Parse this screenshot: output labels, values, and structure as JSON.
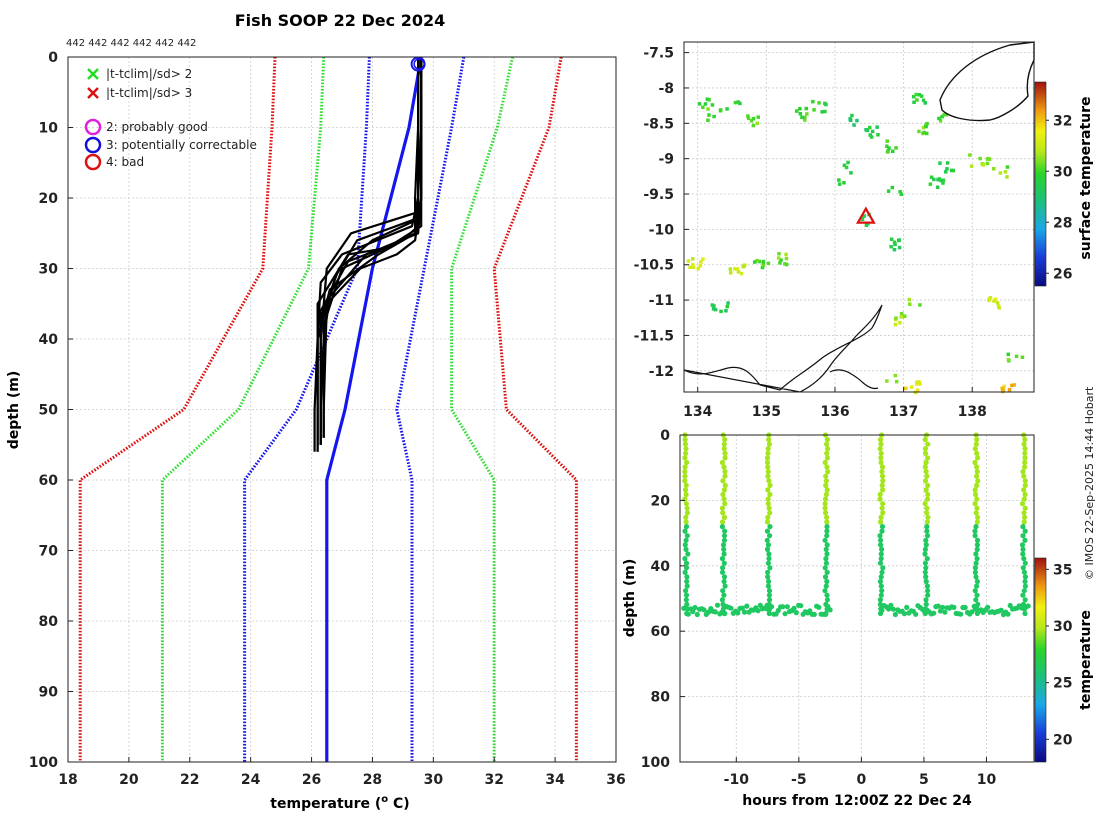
{
  "chart_data": [
    {
      "type": "line",
      "title": "Fish SOOP 22 Dec 2024",
      "top_annotation": "442 442 442 442 442 442",
      "xlabel": "temperature (",
      "xlabel_sup": "o",
      "xlabel_end": " C)",
      "ylabel": "depth (m)",
      "xlim": [
        18,
        36
      ],
      "ylim": [
        0,
        100
      ],
      "xticks": [
        "18",
        "20",
        "22",
        "24",
        "26",
        "28",
        "30",
        "32",
        "34",
        "36"
      ],
      "yticks": [
        "0",
        "10",
        "20",
        "30",
        "40",
        "50",
        "60",
        "70",
        "80",
        "90",
        "100"
      ],
      "legend": [
        {
          "label": "|t-tclim|/sd> 2",
          "marker": "x",
          "color": "#22dd22"
        },
        {
          "label": "|t-tclim|/sd> 3",
          "marker": "x",
          "color": "#dd1111"
        },
        {
          "label": "2: probably good",
          "marker": "o",
          "color": "#dd22dd"
        },
        {
          "label": "3: potentially correctable",
          "marker": "o",
          "color": "#1111dd"
        },
        {
          "label": "4: bad",
          "marker": "o",
          "color": "#dd1111"
        }
      ],
      "colors": {
        "red": "#dd1111",
        "green": "#33dd33",
        "blue": "#1515ee",
        "black": "#000000"
      },
      "climatology": {
        "depth": [
          0,
          10,
          30,
          50,
          60,
          100
        ],
        "mean": [
          29.6,
          29.2,
          28.0,
          27.1,
          26.5,
          26.5
        ],
        "lines": [
          {
            "name": "mean-3sd",
            "color": "#dd1111",
            "temps": [
              24.8,
              24.7,
              24.4,
              21.8,
              18.4,
              18.4
            ]
          },
          {
            "name": "mean-2sd",
            "color": "#33dd33",
            "temps": [
              26.4,
              26.3,
              25.9,
              23.6,
              21.1,
              21.1
            ]
          },
          {
            "name": "mean-1sd",
            "color": "#1515ee",
            "temps": [
              27.9,
              27.8,
              27.5,
              25.5,
              23.8,
              23.8
            ]
          },
          {
            "name": "mean+1sd",
            "color": "#1515ee",
            "temps": [
              31.0,
              30.6,
              29.7,
              28.8,
              29.3,
              29.3
            ]
          },
          {
            "name": "mean+2sd",
            "color": "#33dd33",
            "temps": [
              32.6,
              32.1,
              30.6,
              30.6,
              32.0,
              32.0
            ]
          },
          {
            "name": "mean+3sd",
            "color": "#dd1111",
            "temps": [
              34.2,
              33.8,
              32.0,
              32.4,
              34.7,
              34.7
            ]
          }
        ]
      },
      "profiles": [
        {
          "temps": [
            29.6,
            29.6,
            29.6,
            29.5,
            27.3,
            26.5,
            26.3,
            26.3,
            26.3
          ],
          "depths": [
            0,
            10,
            20,
            22,
            25,
            30,
            40,
            50,
            55
          ]
        },
        {
          "temps": [
            29.5,
            29.5,
            29.5,
            29.4,
            27.5,
            26.8,
            26.2,
            26.2,
            26.2
          ],
          "depths": [
            0,
            10,
            20,
            23,
            26,
            31,
            40,
            50,
            56
          ]
        },
        {
          "temps": [
            29.6,
            29.6,
            29.6,
            29.6,
            28.5,
            27.0,
            26.4,
            26.4,
            26.4
          ],
          "depths": [
            0,
            10,
            20,
            24,
            27,
            30,
            38,
            50,
            54
          ]
        },
        {
          "temps": [
            29.5,
            29.5,
            29.4,
            29.4,
            28.2,
            26.6,
            26.2,
            26.1,
            26.1
          ],
          "depths": [
            0,
            10,
            20,
            25,
            28,
            33,
            40,
            50,
            56
          ]
        },
        {
          "temps": [
            29.6,
            29.6,
            29.6,
            29.5,
            29.0,
            27.2,
            26.3,
            26.3,
            26.3
          ],
          "depths": [
            0,
            10,
            20,
            24,
            26,
            29,
            36,
            50,
            55
          ]
        },
        {
          "temps": [
            29.5,
            29.5,
            29.5,
            29.3,
            27.0,
            26.3,
            26.2,
            26.2,
            26.2
          ],
          "depths": [
            0,
            10,
            20,
            24,
            28,
            32,
            40,
            50,
            55
          ]
        },
        {
          "temps": [
            29.6,
            29.6,
            29.6,
            29.4,
            28.8,
            27.6,
            26.5,
            26.4,
            26.4
          ],
          "depths": [
            0,
            10,
            20,
            26,
            28,
            30,
            35,
            50,
            54
          ]
        },
        {
          "temps": [
            29.6,
            29.6,
            29.5,
            29.5,
            28.0,
            26.9,
            26.3,
            26.3,
            26.3
          ],
          "depths": [
            0,
            10,
            20,
            23,
            26,
            30,
            37,
            50,
            55
          ]
        },
        {
          "temps": [
            29.5,
            29.5,
            29.5,
            29.4,
            28.6,
            27.2,
            26.2,
            26.2,
            26.2
          ],
          "depths": [
            0,
            10,
            20,
            25,
            27,
            28,
            35,
            50,
            56
          ]
        },
        {
          "temps": [
            29.6,
            29.6,
            29.6,
            29.5,
            27.8,
            26.6,
            26.4,
            26.3,
            26.3
          ],
          "depths": [
            0,
            10,
            20,
            25,
            28,
            34,
            40,
            50,
            53
          ]
        }
      ],
      "surface_marker": {
        "temp": 29.5,
        "depth": 1
      }
    },
    {
      "type": "heatmap",
      "xlim": [
        133.8,
        138.9
      ],
      "ylim": [
        -12.3,
        -7.35
      ],
      "xticks": [
        134,
        135,
        136,
        137,
        138
      ],
      "yticks": [
        -7.5,
        -8,
        -8.5,
        -9,
        -9.5,
        -10,
        -10.5,
        -11,
        -11.5,
        -12
      ],
      "xtick_labels": [
        "134",
        "135",
        "136",
        "137",
        "138"
      ],
      "ytick_labels": [
        "-7.5",
        "-8",
        "-8.5",
        "-9",
        "-9.5",
        "-10",
        "-10.5",
        "-11",
        "-11.5",
        "-12"
      ],
      "colorbar_label": "surface temperature",
      "colorbar_range": [
        25.5,
        33.5
      ],
      "colorbar_ticks": [
        "26",
        "28",
        "30",
        "32"
      ],
      "colorbar_tick_values": [
        26,
        28,
        30,
        32
      ],
      "vessel_location": {
        "lon": 136.45,
        "lat": -9.82
      },
      "sst_patches": [
        {
          "lon": 134.1,
          "lat": -8.2,
          "t": 30.0
        },
        {
          "lon": 134.2,
          "lat": -8.35,
          "t": 30.1
        },
        {
          "lon": 134.5,
          "lat": -8.2,
          "t": 29.8
        },
        {
          "lon": 134.8,
          "lat": -8.45,
          "t": 30.2
        },
        {
          "lon": 135.45,
          "lat": -8.35,
          "t": 30.0
        },
        {
          "lon": 135.75,
          "lat": -8.25,
          "t": 29.9
        },
        {
          "lon": 136.3,
          "lat": -8.45,
          "t": 29.4
        },
        {
          "lon": 136.5,
          "lat": -8.6,
          "t": 29.6
        },
        {
          "lon": 136.75,
          "lat": -8.8,
          "t": 29.8
        },
        {
          "lon": 137.2,
          "lat": -8.15,
          "t": 29.7
        },
        {
          "lon": 137.3,
          "lat": -8.55,
          "t": 30.3
        },
        {
          "lon": 137.6,
          "lat": -8.4,
          "t": 30.0
        },
        {
          "lon": 137.45,
          "lat": -9.3,
          "t": 29.6
        },
        {
          "lon": 137.6,
          "lat": -9.1,
          "t": 29.5
        },
        {
          "lon": 138.0,
          "lat": -9.0,
          "t": 30.5
        },
        {
          "lon": 138.2,
          "lat": -9.05,
          "t": 30.7
        },
        {
          "lon": 138.4,
          "lat": -9.15,
          "t": 30.4
        },
        {
          "lon": 136.0,
          "lat": -9.3,
          "t": 30.0
        },
        {
          "lon": 136.2,
          "lat": -9.1,
          "t": 29.9
        },
        {
          "lon": 136.85,
          "lat": -9.45,
          "t": 29.8
        },
        {
          "lon": 136.85,
          "lat": -10.2,
          "t": 29.6
        },
        {
          "lon": 135.2,
          "lat": -10.4,
          "t": 30.3
        },
        {
          "lon": 134.9,
          "lat": -10.5,
          "t": 30.0
        },
        {
          "lon": 134.3,
          "lat": -11.1,
          "t": 29.5
        },
        {
          "lon": 136.9,
          "lat": -11.25,
          "t": 30.6
        },
        {
          "lon": 137.1,
          "lat": -11.0,
          "t": 30.4
        },
        {
          "lon": 138.3,
          "lat": -11.0,
          "t": 31.2
        },
        {
          "lon": 138.6,
          "lat": -11.8,
          "t": 30.2
        },
        {
          "lon": 138.5,
          "lat": -12.2,
          "t": 32.0
        },
        {
          "lon": 137.1,
          "lat": -12.2,
          "t": 31.5
        },
        {
          "lon": 136.8,
          "lat": -12.1,
          "t": 30.8
        },
        {
          "lon": 136.45,
          "lat": -9.85,
          "t": 29.7
        },
        {
          "lon": 134.55,
          "lat": -10.55,
          "t": 31.0
        },
        {
          "lon": 133.95,
          "lat": -10.45,
          "t": 31.1
        }
      ]
    },
    {
      "type": "scatter",
      "xlabel": "hours from 12:00Z 22 Dec 24",
      "ylabel": "depth (m)",
      "xlim": [
        -14.5,
        13.8
      ],
      "ylim": [
        0,
        100
      ],
      "xticks": [
        -10,
        -5,
        0,
        5,
        10
      ],
      "xtick_labels": [
        "-10",
        "-5",
        "0",
        "5",
        "10"
      ],
      "yticks": [
        0,
        20,
        40,
        60,
        80,
        100
      ],
      "ytick_labels": [
        "0",
        "20",
        "40",
        "60",
        "80",
        "100"
      ],
      "colorbar_label": "temperature",
      "colorbar_range": [
        18,
        36
      ],
      "colorbar_ticks": [
        "20",
        "25",
        "30",
        "35"
      ],
      "colorbar_tick_values": [
        20,
        25,
        30,
        35
      ],
      "casts_hours": [
        -14.0,
        -11.0,
        -7.4,
        -2.8,
        1.6,
        5.2,
        9.2,
        13.0
      ],
      "surface_temp": 29.6,
      "deep_temp": 26.3,
      "thermocline_depth": 27,
      "gap_hours": [
        -2.8,
        1.6
      ],
      "bottom_depth_mean": 53.5
    }
  ],
  "side_credit": "© IMOS 22-Sep-2025 14:44 Hobart"
}
